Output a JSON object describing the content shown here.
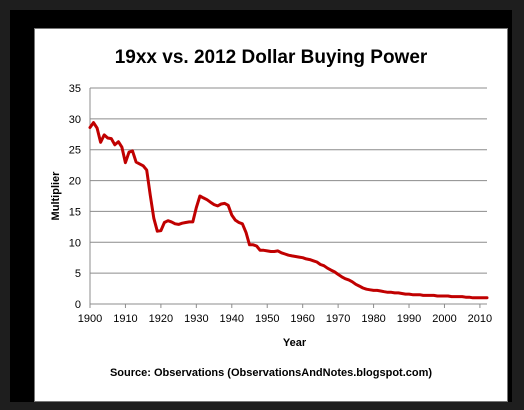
{
  "chart_data": {
    "type": "line",
    "title": "19xx vs. 2012 Dollar Buying Power",
    "xlabel": "Year",
    "ylabel": "Multiplier",
    "xlim": [
      1900,
      2012
    ],
    "ylim": [
      0,
      35
    ],
    "xticks": [
      "1900",
      "1910",
      "1920",
      "1930",
      "1940",
      "1950",
      "1960",
      "1970",
      "1980",
      "1990",
      "2000",
      "2010"
    ],
    "yticks": [
      "0",
      "5",
      "10",
      "15",
      "20",
      "25",
      "30",
      "35"
    ],
    "grid": true,
    "legend": "none",
    "line_color": "#c00000",
    "source": "Source: Observations (ObservationsAndNotes.blogspot.com)",
    "series": [
      {
        "x": [
          1900,
          1901,
          1902,
          1903,
          1904,
          1905,
          1906,
          1907,
          1908,
          1909,
          1910,
          1911,
          1912,
          1913,
          1914,
          1915,
          1916,
          1917,
          1918,
          1919,
          1920,
          1921,
          1922,
          1923,
          1924,
          1925,
          1926,
          1927,
          1928,
          1929,
          1930,
          1931,
          1932,
          1933,
          1934,
          1935,
          1936,
          1937,
          1938,
          1939,
          1940,
          1941,
          1942,
          1943,
          1944,
          1945,
          1946,
          1947,
          1948,
          1949,
          1950,
          1951,
          1952,
          1953,
          1954,
          1955,
          1956,
          1957,
          1958,
          1959,
          1960,
          1961,
          1962,
          1963,
          1964,
          1965,
          1966,
          1967,
          1968,
          1969,
          1970,
          1971,
          1972,
          1973,
          1974,
          1975,
          1976,
          1977,
          1978,
          1979,
          1980,
          1981,
          1982,
          1983,
          1984,
          1985,
          1986,
          1987,
          1988,
          1989,
          1990,
          1991,
          1992,
          1993,
          1994,
          1995,
          1996,
          1997,
          1998,
          1999,
          2000,
          2001,
          2002,
          2003,
          2004,
          2005,
          2006,
          2007,
          2008,
          2009,
          2010,
          2011,
          2012
        ],
        "values": [
          28.6,
          29.4,
          28.5,
          26.2,
          27.4,
          26.9,
          26.8,
          25.8,
          26.3,
          25.4,
          22.9,
          24.6,
          24.8,
          23.0,
          22.7,
          22.4,
          21.7,
          17.6,
          13.9,
          11.8,
          11.9,
          13.2,
          13.5,
          13.3,
          13.0,
          12.9,
          13.1,
          13.2,
          13.3,
          13.3,
          15.6,
          17.5,
          17.2,
          16.9,
          16.5,
          16.1,
          15.9,
          16.2,
          16.3,
          16.0,
          14.4,
          13.6,
          13.2,
          13.0,
          11.6,
          9.6,
          9.6,
          9.4,
          8.7,
          8.7,
          8.6,
          8.5,
          8.5,
          8.6,
          8.3,
          8.1,
          7.9,
          7.8,
          7.7,
          7.6,
          7.5,
          7.3,
          7.2,
          7.0,
          6.8,
          6.4,
          6.2,
          5.8,
          5.5,
          5.2,
          4.8,
          4.4,
          4.1,
          3.9,
          3.6,
          3.2,
          2.9,
          2.6,
          2.4,
          2.3,
          2.2,
          2.2,
          2.1,
          2.0,
          1.9,
          1.9,
          1.8,
          1.8,
          1.7,
          1.6,
          1.6,
          1.5,
          1.5,
          1.5,
          1.4,
          1.4,
          1.4,
          1.4,
          1.3,
          1.3,
          1.3,
          1.3,
          1.2,
          1.2,
          1.2,
          1.2,
          1.1,
          1.1,
          1.0,
          1.0,
          1.0,
          1.0,
          1.0
        ]
      }
    ]
  }
}
